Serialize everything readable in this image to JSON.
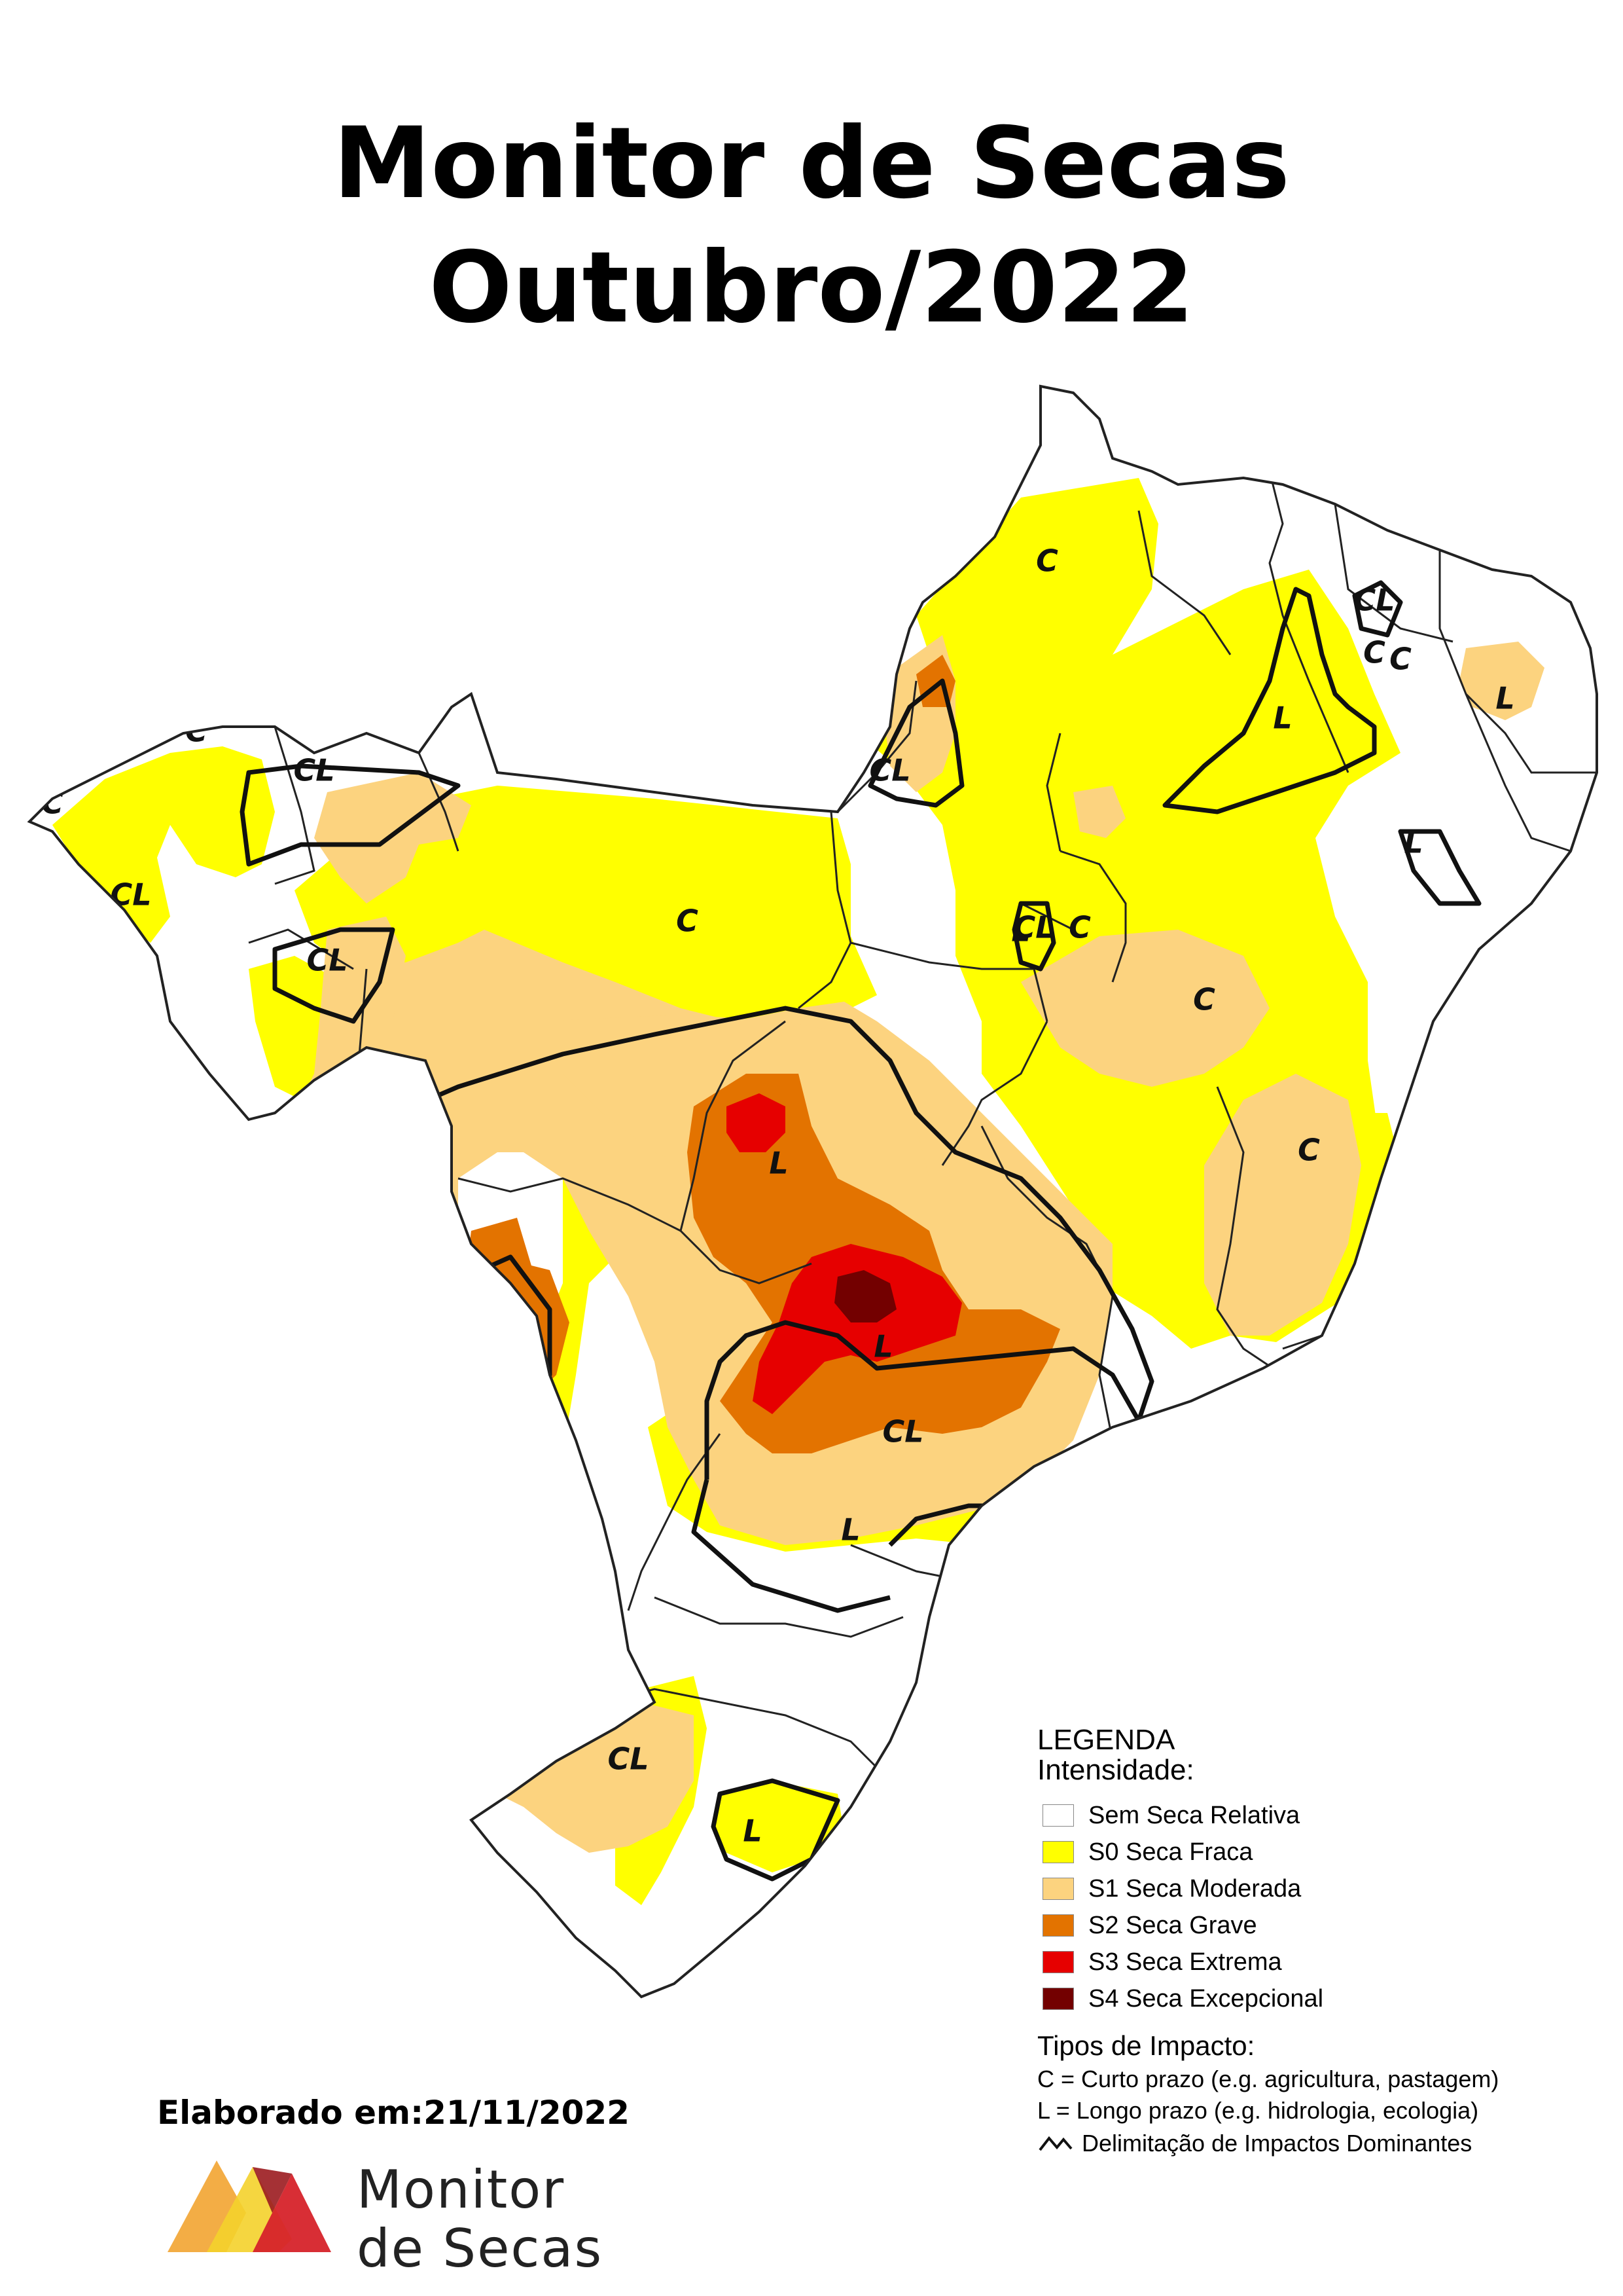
{
  "title": {
    "line1": "Monitor de Secas",
    "line2": "Outubro/2022"
  },
  "colors": {
    "none": "#ffffff",
    "s0": "#ffff00",
    "s1": "#fcd37f",
    "s2": "#e37300",
    "s3": "#e60000",
    "s4": "#730000",
    "border": "#222222",
    "impact_line": "#111111"
  },
  "map_labels": [
    "C",
    "CL",
    "L",
    "CL",
    "CL",
    "L",
    "C",
    "CL",
    "CL",
    "C",
    "CL",
    "L",
    "C",
    "L",
    "C",
    "C",
    "CL",
    "L",
    "CL",
    "L",
    "CL",
    "L",
    "C",
    "L",
    "C",
    "C"
  ],
  "legend": {
    "heading": "LEGENDA",
    "intensity_title": "Intensidade:",
    "intensity": [
      {
        "label": "Sem Seca Relativa",
        "color": "#ffffff"
      },
      {
        "label": "S0 Seca Fraca",
        "color": "#ffff00"
      },
      {
        "label": "S1 Seca Moderada",
        "color": "#fcd37f"
      },
      {
        "label": "S2 Seca Grave",
        "color": "#e37300"
      },
      {
        "label": "S3 Seca Extrema",
        "color": "#e60000"
      },
      {
        "label": "S4 Seca Excepcional",
        "color": "#730000"
      }
    ],
    "impact_title": "Tipos de Impacto:",
    "impact_types": [
      "C = Curto prazo (e.g. agricultura, pastagem)",
      "L = Longo prazo (e.g. hidrologia, ecologia)"
    ],
    "delimitation": "Delimitação de Impactos Dominantes"
  },
  "elaborado": "Elaborado em:21/11/2022",
  "logo_text": {
    "line1": "Monitor",
    "line2": "de Secas"
  }
}
